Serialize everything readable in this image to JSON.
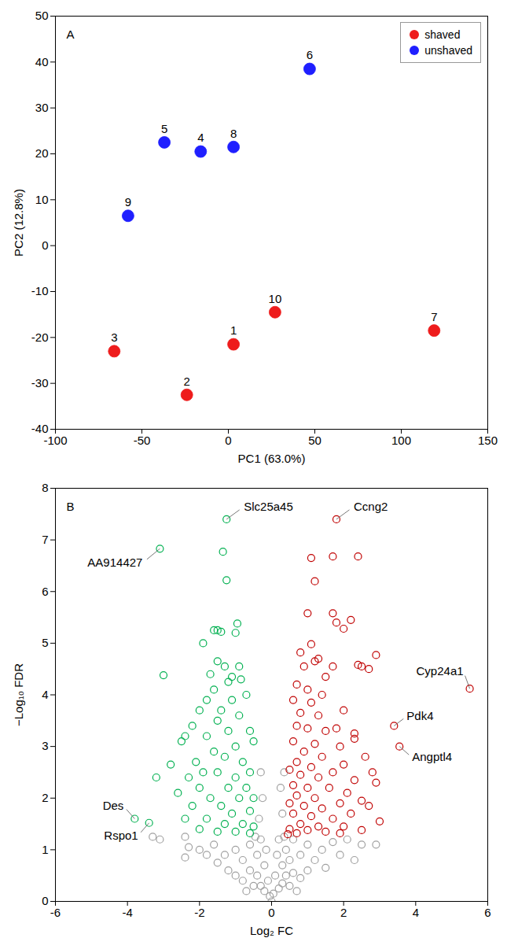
{
  "chart_data": [
    {
      "type": "scatter",
      "panel_label": "A",
      "xlabel": "PC1 (63.0%)",
      "ylabel": "PC2 (12.8%)",
      "xlim": [
        -100,
        150
      ],
      "xticks": [
        -100,
        -50,
        0,
        50,
        100,
        150
      ],
      "ylim": [
        -40,
        50
      ],
      "yticks": [
        -40,
        -30,
        -20,
        -10,
        0,
        10,
        20,
        30,
        40,
        50
      ],
      "grid": false,
      "legend": "top-right",
      "marker": "circle",
      "series": [
        {
          "name": "shaved",
          "color": "#ee1c1c",
          "points": [
            [
              3,
              -21.5
            ],
            [
              -24,
              -32.5
            ],
            [
              -66,
              -23
            ],
            [
              27,
              -14.5
            ],
            [
              119,
              -18.5
            ]
          ],
          "labels": [
            "1",
            "2",
            "3",
            "10",
            "7"
          ]
        },
        {
          "name": "unshaved",
          "color": "#1f1fff",
          "points": [
            [
              -58,
              6.5
            ],
            [
              -37,
              22.5
            ],
            [
              -16,
              20.5
            ],
            [
              3,
              21.5
            ],
            [
              47,
              38.5
            ]
          ],
          "labels": [
            "9",
            "5",
            "4",
            "8",
            "6"
          ]
        }
      ]
    },
    {
      "type": "scatter",
      "panel_label": "B",
      "xlabel": "Log₂ FC",
      "ylabel": "−Log₁₀ FDR",
      "xlim": [
        -6,
        6
      ],
      "xticks": [
        -6,
        -4,
        -2,
        0,
        2,
        4,
        6
      ],
      "ylim": [
        0,
        8
      ],
      "yticks": [
        0,
        1,
        2,
        3,
        4,
        5,
        6,
        7,
        8
      ],
      "grid": false,
      "marker": "circle-open",
      "series": [
        {
          "color": "#a0a0a0",
          "points": [
            [
              -3.3,
              1.25
            ],
            [
              -3.1,
              1.2
            ],
            [
              -2.4,
              1.25
            ],
            [
              -2.3,
              1.05
            ],
            [
              -2.4,
              0.85
            ],
            [
              -2.0,
              1.0
            ],
            [
              -1.8,
              0.9
            ],
            [
              -1.6,
              1.1
            ],
            [
              -1.5,
              0.75
            ],
            [
              -1.3,
              0.9
            ],
            [
              -1.2,
              0.6
            ],
            [
              -1.0,
              1.0
            ],
            [
              -1.0,
              0.5
            ],
            [
              -0.8,
              0.8
            ],
            [
              -0.8,
              0.4
            ],
            [
              -0.6,
              1.1
            ],
            [
              -0.6,
              0.6
            ],
            [
              -0.5,
              0.3
            ],
            [
              -0.4,
              0.9
            ],
            [
              -0.4,
              0.5
            ],
            [
              -0.3,
              1.2
            ],
            [
              -0.3,
              0.3
            ],
            [
              -0.2,
              0.7
            ],
            [
              -0.2,
              0.2
            ],
            [
              -0.15,
              1.0
            ],
            [
              -0.1,
              0.4
            ],
            [
              -0.05,
              0.1
            ],
            [
              0,
              0
            ],
            [
              0.05,
              0.15
            ],
            [
              0.1,
              0.5
            ],
            [
              0.15,
              0.9
            ],
            [
              0.2,
              0.25
            ],
            [
              0.2,
              1.2
            ],
            [
              0.3,
              0.7
            ],
            [
              0.3,
              0.35
            ],
            [
              0.4,
              1.0
            ],
            [
              0.4,
              0.5
            ],
            [
              0.5,
              0.8
            ],
            [
              0.5,
              0.3
            ],
            [
              0.6,
              1.2
            ],
            [
              0.6,
              0.55
            ],
            [
              0.8,
              0.9
            ],
            [
              0.8,
              0.45
            ],
            [
              1.0,
              1.1
            ],
            [
              1.0,
              0.6
            ],
            [
              1.2,
              0.8
            ],
            [
              1.4,
              1.0
            ],
            [
              1.5,
              0.65
            ],
            [
              1.7,
              1.15
            ],
            [
              1.9,
              0.9
            ],
            [
              2.1,
              1.2
            ],
            [
              2.3,
              0.8
            ],
            [
              2.5,
              1.1
            ],
            [
              2.9,
              1.1
            ],
            [
              -0.45,
              1.25
            ],
            [
              0.35,
              1.25
            ],
            [
              -0.7,
              0.2
            ],
            [
              0.7,
              0.2
            ],
            [
              -0.35,
              1.6
            ],
            [
              0.3,
              1.7
            ],
            [
              -0.25,
              2.0
            ],
            [
              0.25,
              2.2
            ],
            [
              -0.3,
              2.5
            ],
            [
              0.35,
              2.5
            ]
          ]
        },
        {
          "color": "#00b050",
          "points": [
            [
              -1.25,
              7.4
            ],
            [
              -3.1,
              6.83
            ],
            [
              -1.35,
              6.77
            ],
            [
              -1.25,
              6.22
            ],
            [
              -0.95,
              5.38
            ],
            [
              -1.6,
              5.25
            ],
            [
              -1.5,
              5.25
            ],
            [
              -1.4,
              5.22
            ],
            [
              -1.0,
              5.2
            ],
            [
              -1.9,
              5.0
            ],
            [
              -3.0,
              4.38
            ],
            [
              -1.5,
              4.65
            ],
            [
              -1.3,
              4.55
            ],
            [
              -0.9,
              4.55
            ],
            [
              -1.7,
              4.4
            ],
            [
              -1.1,
              4.35
            ],
            [
              -1.2,
              4.25
            ],
            [
              -0.85,
              4.3
            ],
            [
              -1.6,
              4.1
            ],
            [
              -1.8,
              3.9
            ],
            [
              -1.1,
              3.9
            ],
            [
              -0.7,
              4.0
            ],
            [
              -2.0,
              3.7
            ],
            [
              -1.4,
              3.7
            ],
            [
              -0.9,
              3.6
            ],
            [
              -2.2,
              3.4
            ],
            [
              -2.4,
              3.2
            ],
            [
              -2.5,
              3.1
            ],
            [
              -1.5,
              3.5
            ],
            [
              -0.6,
              3.3
            ],
            [
              -1.2,
              3.3
            ],
            [
              -1.8,
              3.2
            ],
            [
              -1.0,
              3.0
            ],
            [
              -0.5,
              3.1
            ],
            [
              -1.6,
              2.9
            ],
            [
              -2.8,
              2.65
            ],
            [
              -2.1,
              2.7
            ],
            [
              -1.3,
              2.8
            ],
            [
              -0.8,
              2.7
            ],
            [
              -3.2,
              2.4
            ],
            [
              -2.3,
              2.4
            ],
            [
              -1.9,
              2.5
            ],
            [
              -1.5,
              2.5
            ],
            [
              -1.0,
              2.4
            ],
            [
              -0.6,
              2.5
            ],
            [
              -2.0,
              2.2
            ],
            [
              -1.2,
              2.2
            ],
            [
              -0.7,
              2.2
            ],
            [
              -2.6,
              2.1
            ],
            [
              -1.7,
              2.0
            ],
            [
              -0.9,
              2.0
            ],
            [
              -0.5,
              2.0
            ],
            [
              -2.2,
              1.85
            ],
            [
              -1.4,
              1.85
            ],
            [
              -1.1,
              1.7
            ],
            [
              -0.6,
              1.75
            ],
            [
              -2.4,
              1.6
            ],
            [
              -1.8,
              1.6
            ],
            [
              -1.3,
              1.5
            ],
            [
              -0.8,
              1.5
            ],
            [
              -0.5,
              1.45
            ],
            [
              -2.0,
              1.4
            ],
            [
              -1.5,
              1.35
            ],
            [
              -1.0,
              1.35
            ],
            [
              -0.6,
              1.32
            ],
            [
              -3.8,
              1.6
            ],
            [
              -3.4,
              1.52
            ]
          ]
        },
        {
          "color": "#c00000",
          "points": [
            [
              1.8,
              7.4
            ],
            [
              1.7,
              6.68
            ],
            [
              2.4,
              6.68
            ],
            [
              1.1,
              6.65
            ],
            [
              1.2,
              6.2
            ],
            [
              1.0,
              5.58
            ],
            [
              1.7,
              5.58
            ],
            [
              2.2,
              5.45
            ],
            [
              1.8,
              5.4
            ],
            [
              2.0,
              5.28
            ],
            [
              1.1,
              4.98
            ],
            [
              2.9,
              4.77
            ],
            [
              0.8,
              4.82
            ],
            [
              1.3,
              4.7
            ],
            [
              1.2,
              4.65
            ],
            [
              0.9,
              4.55
            ],
            [
              1.7,
              4.55
            ],
            [
              2.4,
              4.58
            ],
            [
              2.5,
              4.55
            ],
            [
              2.7,
              4.5
            ],
            [
              1.5,
              4.35
            ],
            [
              5.5,
              4.12
            ],
            [
              0.7,
              4.2
            ],
            [
              1.0,
              4.1
            ],
            [
              1.4,
              4.0
            ],
            [
              0.6,
              3.9
            ],
            [
              1.1,
              3.85
            ],
            [
              2.0,
              3.7
            ],
            [
              0.8,
              3.65
            ],
            [
              1.3,
              3.6
            ],
            [
              3.4,
              3.4
            ],
            [
              1.8,
              3.35
            ],
            [
              0.7,
              3.4
            ],
            [
              1.0,
              3.35
            ],
            [
              1.5,
              3.3
            ],
            [
              2.3,
              3.25
            ],
            [
              2.3,
              3.15
            ],
            [
              3.55,
              3.0
            ],
            [
              0.6,
              3.1
            ],
            [
              1.2,
              3.05
            ],
            [
              1.9,
              3.0
            ],
            [
              0.9,
              2.9
            ],
            [
              2.6,
              2.8
            ],
            [
              1.4,
              2.8
            ],
            [
              0.7,
              2.7
            ],
            [
              2.0,
              2.65
            ],
            [
              1.1,
              2.6
            ],
            [
              0.5,
              2.55
            ],
            [
              2.8,
              2.5
            ],
            [
              1.7,
              2.5
            ],
            [
              0.8,
              2.45
            ],
            [
              1.3,
              2.4
            ],
            [
              2.3,
              2.35
            ],
            [
              2.9,
              2.3
            ],
            [
              0.6,
              2.25
            ],
            [
              1.0,
              2.2
            ],
            [
              1.6,
              2.2
            ],
            [
              2.1,
              2.1
            ],
            [
              0.7,
              2.05
            ],
            [
              1.2,
              2.0
            ],
            [
              2.5,
              1.95
            ],
            [
              1.9,
              1.9
            ],
            [
              0.5,
              1.9
            ],
            [
              0.9,
              1.85
            ],
            [
              2.7,
              1.85
            ],
            [
              1.4,
              1.8
            ],
            [
              2.2,
              1.7
            ],
            [
              0.6,
              1.7
            ],
            [
              1.1,
              1.65
            ],
            [
              1.7,
              1.6
            ],
            [
              3.0,
              1.55
            ],
            [
              0.8,
              1.5
            ],
            [
              1.3,
              1.45
            ],
            [
              2.0,
              1.45
            ],
            [
              0.5,
              1.4
            ],
            [
              1.0,
              1.38
            ],
            [
              2.5,
              1.38
            ],
            [
              1.5,
              1.35
            ],
            [
              0.7,
              1.32
            ],
            [
              1.9,
              1.32
            ],
            [
              0.45,
              1.3
            ]
          ]
        }
      ],
      "annotations": [
        {
          "text": "Slc25a45",
          "x": -1.25,
          "y": 7.4
        },
        {
          "text": "Ccng2",
          "x": 1.8,
          "y": 7.4
        },
        {
          "text": "AA914427",
          "x": -3.1,
          "y": 6.83
        },
        {
          "text": "Cyp24a1",
          "x": 5.5,
          "y": 4.12
        },
        {
          "text": "Pdk4",
          "x": 3.4,
          "y": 3.4
        },
        {
          "text": "Angptl4",
          "x": 3.55,
          "y": 3.0
        },
        {
          "text": "Des",
          "x": -3.8,
          "y": 1.6
        },
        {
          "text": "Rspo1",
          "x": -3.4,
          "y": 1.52
        }
      ]
    }
  ]
}
